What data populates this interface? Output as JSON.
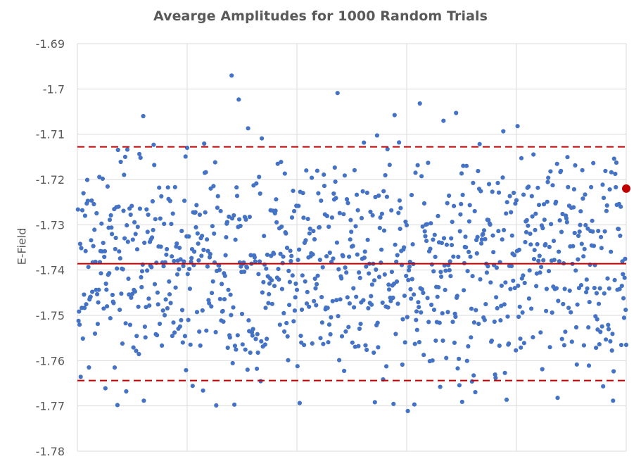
{
  "chart_data": {
    "type": "scatter",
    "title": "Avearge Amplitudes for 1000 Random Trials",
    "xlabel": "",
    "ylabel": "E-Field",
    "xlim": [
      0,
      1000
    ],
    "ylim": [
      -1.78,
      -1.69
    ],
    "yticks": [
      "-1.69",
      "-1.7",
      "-1.71",
      "-1.72",
      "-1.73",
      "-1.74",
      "-1.75",
      "-1.76",
      "-1.77",
      "-1.78"
    ],
    "grid": true,
    "colors": {
      "points": "#4472C4",
      "mean_line": "#C00000",
      "band_lines": "#C00000",
      "highlight_point": "#C00000",
      "grid": "#D9D9D9",
      "text": "#595959"
    },
    "mean": -1.7386,
    "upper_band": -1.7128,
    "lower_band": -1.7644,
    "highlight_point": {
      "x": 1000,
      "y": -1.722
    },
    "series_y_min": -1.7718,
    "series_y_max": -1.6955,
    "n_points": 1000
  }
}
